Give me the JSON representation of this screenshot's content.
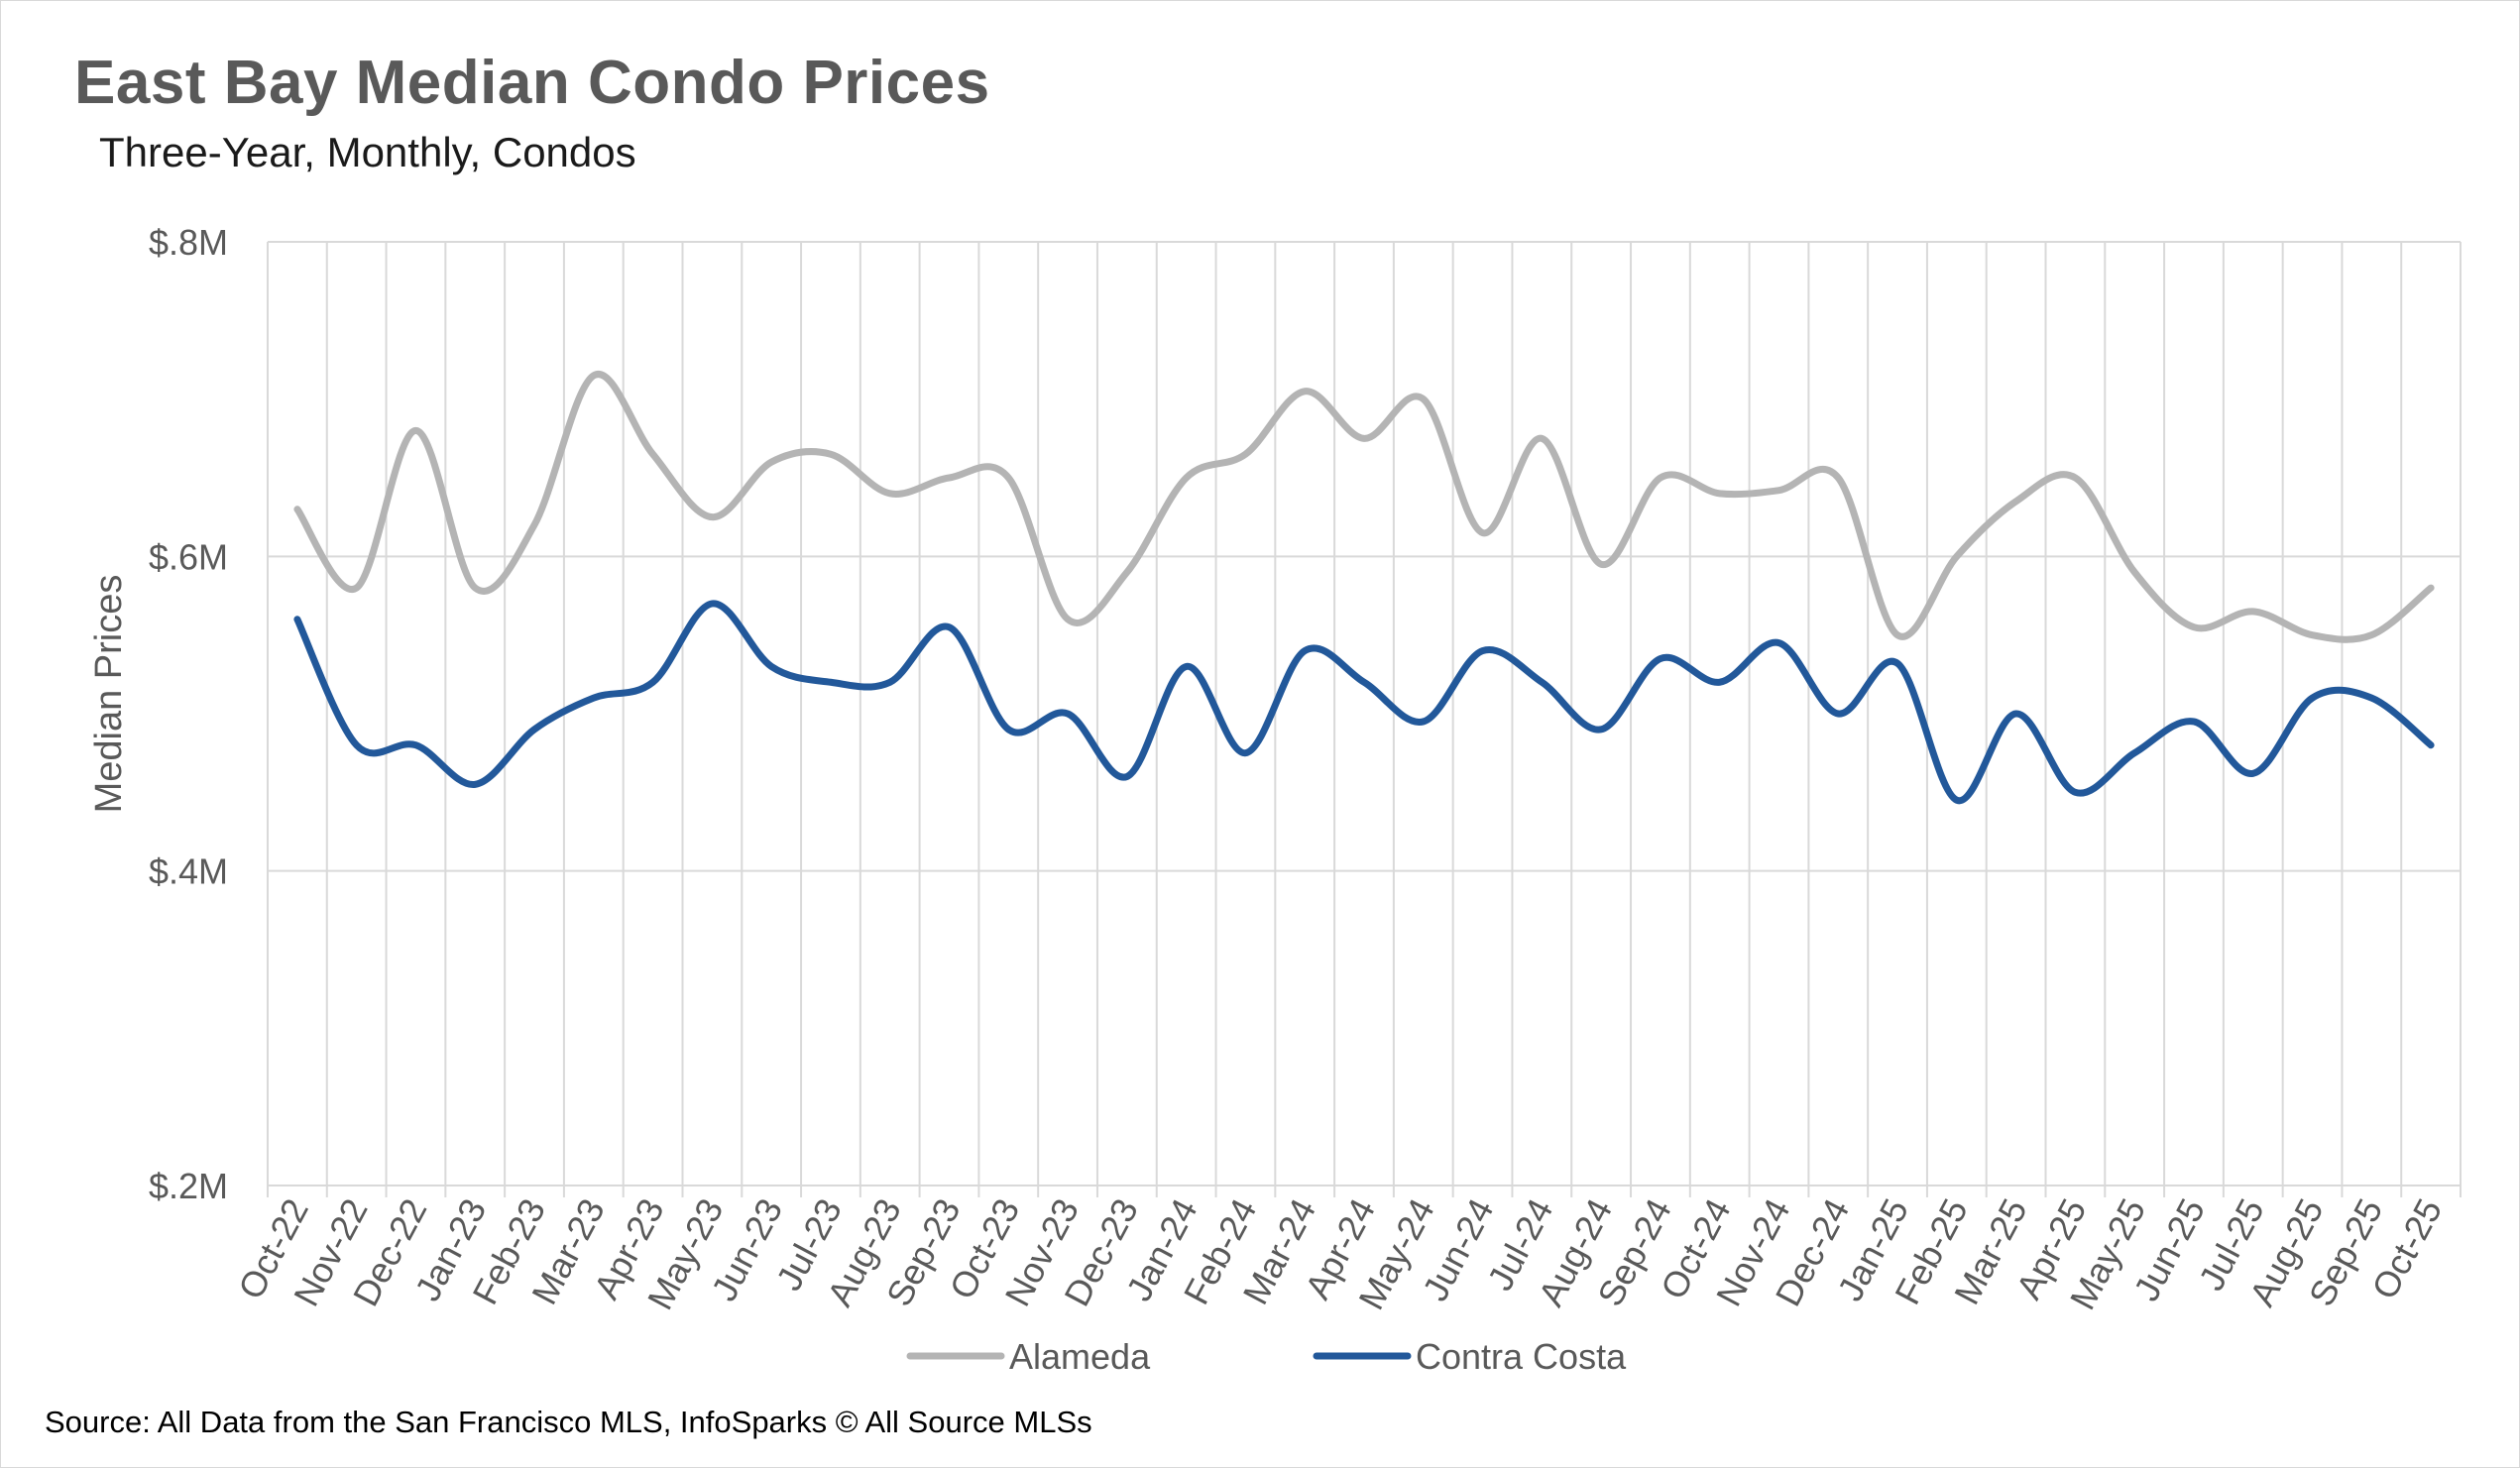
{
  "chart_data": {
    "type": "line",
    "title": "East Bay Median Condo Prices",
    "subtitle": "Three-Year, Monthly, Condos",
    "ylabel": "Median Prices",
    "xlabel": "",
    "ylim": [
      0.2,
      0.8
    ],
    "yticks": [
      0.2,
      0.4,
      0.6,
      0.8
    ],
    "ytick_labels": [
      "$.2M",
      "$.4M",
      "$.6M",
      "$.8M"
    ],
    "grid": true,
    "legend_position": "bottom",
    "categories": [
      "Oct-22",
      "Nov-22",
      "Dec-22",
      "Jan-23",
      "Feb-23",
      "Mar-23",
      "Apr-23",
      "May-23",
      "Jun-23",
      "Jul-23",
      "Aug-23",
      "Sep-23",
      "Oct-23",
      "Nov-23",
      "Dec-23",
      "Jan-24",
      "Feb-24",
      "Mar-24",
      "Apr-24",
      "May-24",
      "Jun-24",
      "Jul-24",
      "Aug-24",
      "Sep-24",
      "Oct-24",
      "Nov-24",
      "Dec-24",
      "Jan-25",
      "Feb-25",
      "Mar-25",
      "Apr-25",
      "May-25",
      "Jun-25",
      "Jul-25",
      "Aug-25",
      "Sep-25",
      "Oct-25"
    ],
    "series": [
      {
        "name": "Alameda",
        "color": "#b4b4b4",
        "values": [
          0.63,
          0.58,
          0.68,
          0.58,
          0.62,
          0.715,
          0.665,
          0.625,
          0.66,
          0.665,
          0.64,
          0.65,
          0.65,
          0.56,
          0.59,
          0.65,
          0.665,
          0.705,
          0.675,
          0.7,
          0.615,
          0.675,
          0.595,
          0.65,
          0.64,
          0.642,
          0.65,
          0.55,
          0.6,
          0.635,
          0.65,
          0.59,
          0.555,
          0.565,
          0.55,
          0.55,
          0.58
        ]
      },
      {
        "name": "Contra Costa",
        "color": "#22589a",
        "values": [
          0.56,
          0.48,
          0.48,
          0.455,
          0.49,
          0.51,
          0.52,
          0.57,
          0.53,
          0.52,
          0.52,
          0.555,
          0.49,
          0.5,
          0.46,
          0.53,
          0.475,
          0.54,
          0.52,
          0.495,
          0.54,
          0.52,
          0.49,
          0.535,
          0.52,
          0.545,
          0.5,
          0.532,
          0.445,
          0.5,
          0.45,
          0.475,
          0.495,
          0.462,
          0.51,
          0.51,
          0.48
        ]
      }
    ]
  },
  "source": "Source: All Data from the San Francisco MLS, InfoSparks © All Source MLSs"
}
